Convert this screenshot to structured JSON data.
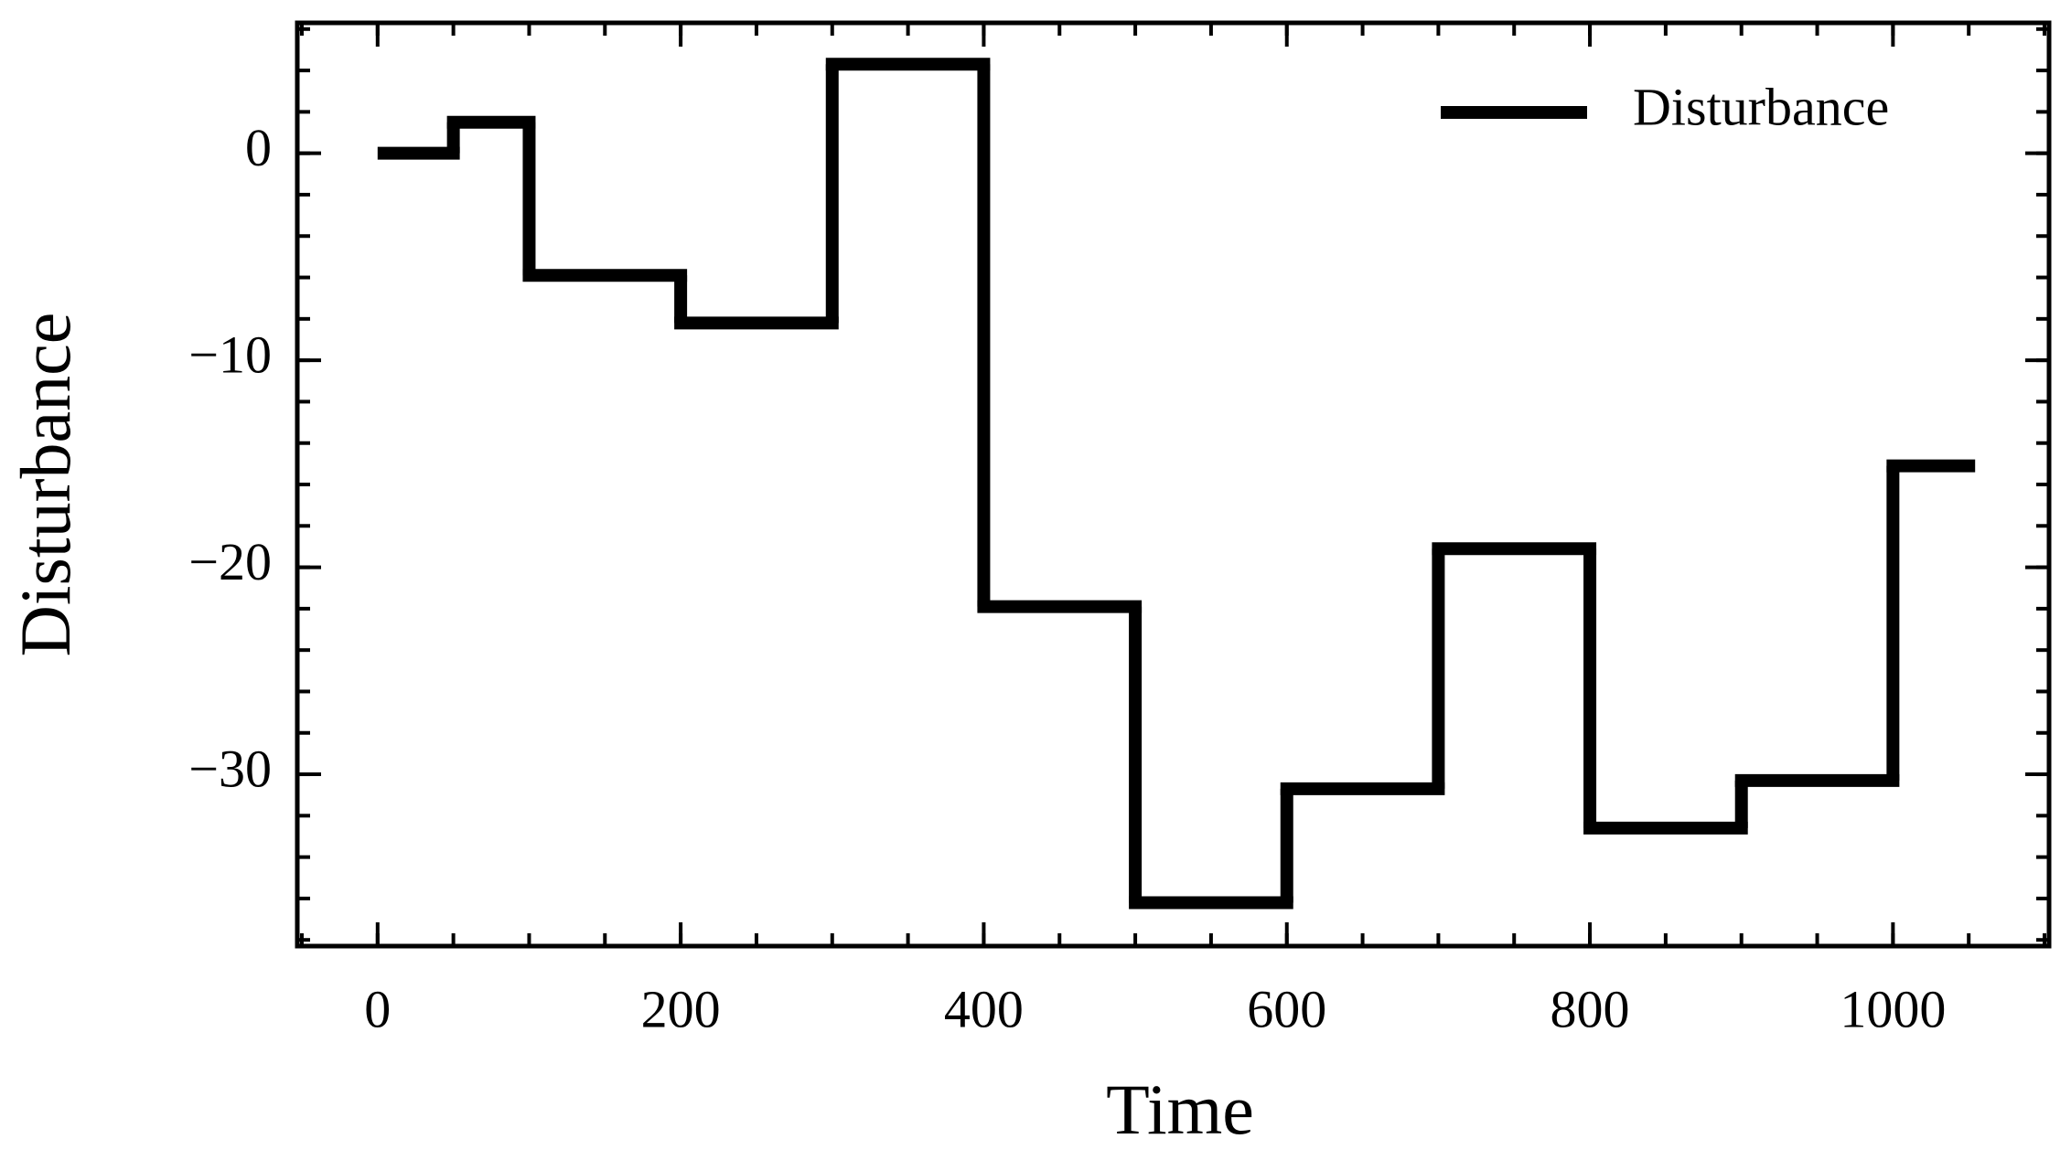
{
  "chart_data": {
    "type": "step",
    "xlabel": "Time",
    "ylabel": "Disturbance",
    "x": [
      0,
      50,
      100,
      200,
      300,
      400,
      500,
      600,
      700,
      800,
      900,
      1000,
      1050
    ],
    "series": [
      {
        "name": "Disturbance",
        "color": "#000000",
        "values": [
          0,
          1.5,
          -5.9,
          -8.2,
          4.3,
          -21.9,
          -36.2,
          -30.7,
          -19.1,
          -32.6,
          -30.3,
          -15.1,
          -15.1
        ]
      }
    ],
    "xlim": [
      -53,
      1103
    ],
    "ylim": [
      -38.3,
      6.3
    ],
    "xticks": [
      0,
      200,
      400,
      600,
      800,
      1000
    ],
    "yticks": [
      0,
      {
        "value": -10,
        "label": "−10"
      },
      {
        "value": -20,
        "label": "−20"
      },
      {
        "value": -30,
        "label": "−30"
      }
    ],
    "legend": "upper right",
    "grid": false
  }
}
